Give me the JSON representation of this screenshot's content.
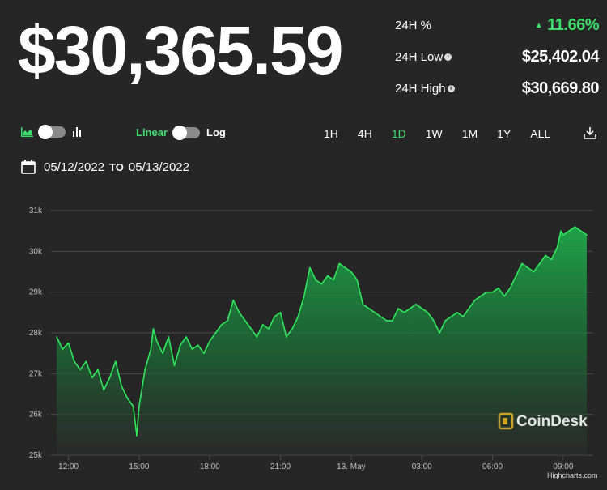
{
  "price": "$30,365.59",
  "stats": [
    {
      "label": "24H %",
      "value": "11.66%",
      "has_info": false,
      "positive": true
    },
    {
      "label": "24H Low",
      "value": "$25,402.04",
      "has_info": true,
      "positive": false
    },
    {
      "label": "24H High",
      "value": "$30,669.80",
      "has_info": true,
      "positive": false
    }
  ],
  "controls": {
    "scale_linear": "Linear",
    "scale_log": "Log",
    "ranges": [
      "1H",
      "4H",
      "1D",
      "1W",
      "1M",
      "1Y",
      "ALL"
    ],
    "active_range": "1D"
  },
  "date_range": {
    "from": "05/12/2022",
    "to_label": "TO",
    "to": "05/13/2022"
  },
  "watermark": "CoinDesk",
  "credits": "Highcharts.com",
  "colors": {
    "background": "#262626",
    "accent": "#3ddc6a",
    "line": "#2ee85c",
    "grid": "#4a4a4a"
  },
  "chart_data": {
    "type": "area",
    "x_ticks": [
      "12:00",
      "15:00",
      "18:00",
      "21:00",
      "13. May",
      "03:00",
      "06:00",
      "09:00"
    ],
    "y_ticks": [
      "25k",
      "26k",
      "27k",
      "28k",
      "29k",
      "30k",
      "31k"
    ],
    "ylim": [
      25000,
      31000
    ],
    "x_range_hours": [
      11.5,
      34.0
    ],
    "series": [
      {
        "points": [
          [
            11.5,
            27900
          ],
          [
            11.75,
            27600
          ],
          [
            12.0,
            27750
          ],
          [
            12.25,
            27300
          ],
          [
            12.5,
            27100
          ],
          [
            12.75,
            27300
          ],
          [
            13.0,
            26900
          ],
          [
            13.25,
            27100
          ],
          [
            13.5,
            26600
          ],
          [
            13.75,
            26900
          ],
          [
            14.0,
            27300
          ],
          [
            14.25,
            26700
          ],
          [
            14.5,
            26400
          ],
          [
            14.75,
            26200
          ],
          [
            14.9,
            25480
          ],
          [
            15.0,
            26200
          ],
          [
            15.25,
            27100
          ],
          [
            15.5,
            27600
          ],
          [
            15.6,
            28100
          ],
          [
            15.75,
            27800
          ],
          [
            16.0,
            27500
          ],
          [
            16.25,
            27900
          ],
          [
            16.5,
            27200
          ],
          [
            16.75,
            27700
          ],
          [
            17.0,
            27900
          ],
          [
            17.25,
            27600
          ],
          [
            17.5,
            27700
          ],
          [
            17.75,
            27500
          ],
          [
            18.0,
            27800
          ],
          [
            18.25,
            28000
          ],
          [
            18.5,
            28200
          ],
          [
            18.75,
            28300
          ],
          [
            19.0,
            28800
          ],
          [
            19.25,
            28500
          ],
          [
            19.5,
            28300
          ],
          [
            19.75,
            28100
          ],
          [
            20.0,
            27900
          ],
          [
            20.25,
            28200
          ],
          [
            20.5,
            28100
          ],
          [
            20.75,
            28400
          ],
          [
            21.0,
            28500
          ],
          [
            21.25,
            27900
          ],
          [
            21.5,
            28100
          ],
          [
            21.75,
            28400
          ],
          [
            22.0,
            28900
          ],
          [
            22.25,
            29600
          ],
          [
            22.5,
            29300
          ],
          [
            22.75,
            29200
          ],
          [
            23.0,
            29400
          ],
          [
            23.25,
            29300
          ],
          [
            23.5,
            29700
          ],
          [
            23.75,
            29600
          ],
          [
            24.0,
            29500
          ],
          [
            24.25,
            29300
          ],
          [
            24.5,
            28700
          ],
          [
            24.75,
            28600
          ],
          [
            25.0,
            28500
          ],
          [
            25.25,
            28400
          ],
          [
            25.5,
            28300
          ],
          [
            25.75,
            28300
          ],
          [
            26.0,
            28600
          ],
          [
            26.25,
            28500
          ],
          [
            26.5,
            28600
          ],
          [
            26.75,
            28700
          ],
          [
            27.0,
            28600
          ],
          [
            27.25,
            28500
          ],
          [
            27.5,
            28300
          ],
          [
            27.75,
            28000
          ],
          [
            28.0,
            28300
          ],
          [
            28.25,
            28400
          ],
          [
            28.5,
            28500
          ],
          [
            28.75,
            28400
          ],
          [
            29.0,
            28600
          ],
          [
            29.25,
            28800
          ],
          [
            29.5,
            28900
          ],
          [
            29.75,
            29000
          ],
          [
            30.0,
            29000
          ],
          [
            30.25,
            29100
          ],
          [
            30.5,
            28900
          ],
          [
            30.75,
            29100
          ],
          [
            31.0,
            29400
          ],
          [
            31.25,
            29700
          ],
          [
            31.5,
            29600
          ],
          [
            31.75,
            29500
          ],
          [
            32.0,
            29700
          ],
          [
            32.25,
            29900
          ],
          [
            32.5,
            29800
          ],
          [
            32.75,
            30100
          ],
          [
            32.9,
            30500
          ],
          [
            33.0,
            30400
          ],
          [
            33.25,
            30500
          ],
          [
            33.5,
            30600
          ],
          [
            33.75,
            30500
          ],
          [
            34.0,
            30400
          ]
        ]
      }
    ]
  }
}
